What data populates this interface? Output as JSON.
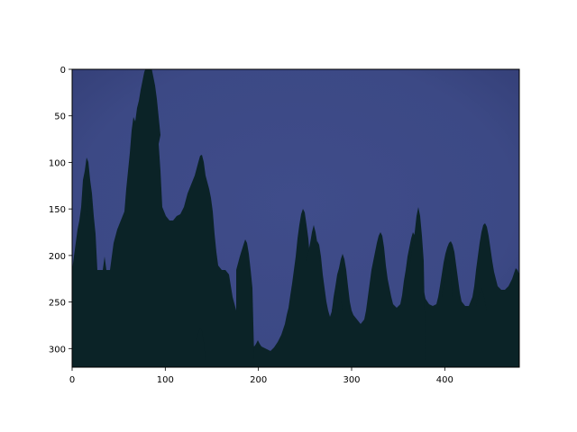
{
  "image": {
    "description_colors": {
      "sky": "#3d4a86",
      "sky_dark_edge": "#35407a",
      "trees": "#0b2327",
      "axis": "#000000"
    }
  },
  "axes": {
    "x_ticks": [
      "0",
      "100",
      "200",
      "300",
      "400"
    ],
    "y_ticks": [
      "0",
      "50",
      "100",
      "150",
      "200",
      "250",
      "300"
    ],
    "x_range": [
      0,
      480
    ],
    "y_range": [
      0,
      320
    ],
    "x_values": [
      0,
      100,
      200,
      300,
      400
    ],
    "y_values": [
      0,
      50,
      100,
      150,
      200,
      250,
      300
    ]
  }
}
